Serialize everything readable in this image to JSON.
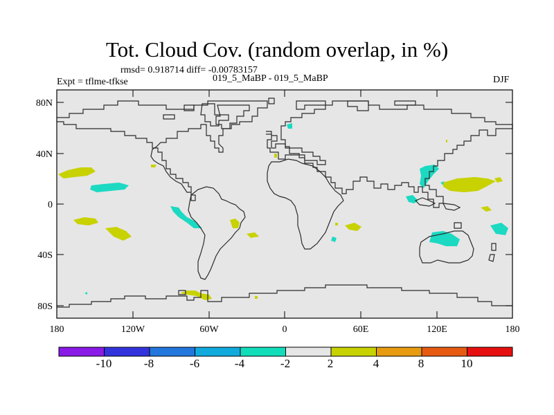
{
  "title": "Tot. Cloud Cov. (random overlap, in %)",
  "stats_line": "rmsd= 0.918714  diff= -0.00783157",
  "experiment_line": "Expt = tflme-tfkse",
  "runs_line": "019_5_MaBP - 019_5_MaBP",
  "season": "DJF",
  "map": {
    "lat_labels": [
      "80N",
      "40N",
      "0",
      "40S",
      "80S"
    ],
    "lon_labels": [
      "180",
      "120W",
      "60W",
      "0",
      "60E",
      "120E",
      "180"
    ],
    "background_color": "#e6e6e6"
  },
  "colorbar": {
    "labels": [
      "-10",
      "-8",
      "-6",
      "-4",
      "-2",
      "2",
      "4",
      "8",
      "10"
    ],
    "colors": [
      "#8a1ae6",
      "#3333dd",
      "#2277dd",
      "#11aadd",
      "#11ddbb",
      "#e6e6e6",
      "#c8d200",
      "#e69b10",
      "#e65a12",
      "#e61010"
    ]
  }
}
